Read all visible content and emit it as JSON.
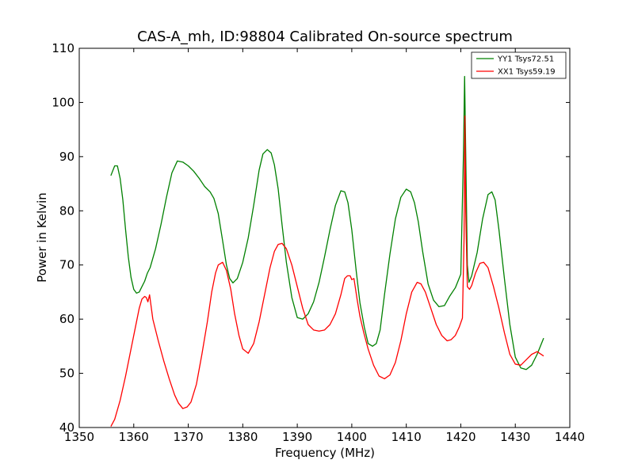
{
  "chart_data": {
    "type": "line",
    "title": "CAS-A_mh, ID:98804 Calibrated On-source spectrum",
    "xlabel": "Frequency (MHz)",
    "ylabel": "Power in Kelvin",
    "xlim": [
      1350,
      1440
    ],
    "ylim": [
      40,
      110
    ],
    "xticks": [
      1350,
      1360,
      1370,
      1380,
      1390,
      1400,
      1410,
      1420,
      1430,
      1440
    ],
    "yticks": [
      40,
      50,
      60,
      70,
      80,
      90,
      100,
      110
    ],
    "grid": false,
    "legend_position": "top-right",
    "series": [
      {
        "name": "YY1 Tsys72.51",
        "color": "#008000",
        "x": [
          1355.8,
          1356.5,
          1357.0,
          1357.5,
          1358.0,
          1358.5,
          1359.0,
          1359.5,
          1360.0,
          1360.5,
          1361.0,
          1361.5,
          1362.0,
          1362.5,
          1363.0,
          1364.0,
          1365.0,
          1366.0,
          1367.0,
          1368.0,
          1369.0,
          1370.0,
          1371.0,
          1372.0,
          1373.0,
          1374.0,
          1374.7,
          1375.5,
          1376.3,
          1377.0,
          1377.6,
          1378.2,
          1379.0,
          1380.0,
          1381.0,
          1382.0,
          1383.0,
          1383.7,
          1384.5,
          1385.2,
          1385.8,
          1386.5,
          1387.2,
          1388.0,
          1389.0,
          1390.0,
          1391.0,
          1392.0,
          1393.0,
          1394.0,
          1395.0,
          1396.0,
          1397.0,
          1398.0,
          1398.7,
          1399.3,
          1400.0,
          1400.8,
          1401.5,
          1402.3,
          1403.0,
          1403.8,
          1404.5,
          1405.2,
          1406.0,
          1407.0,
          1408.0,
          1409.0,
          1410.0,
          1410.8,
          1411.5,
          1412.2,
          1413.0,
          1414.0,
          1415.0,
          1416.0,
          1417.0,
          1418.0,
          1419.0,
          1420.0,
          1420.5,
          1420.7,
          1420.9,
          1421.2,
          1421.5,
          1422.0,
          1423.0,
          1424.0,
          1425.0,
          1425.7,
          1426.3,
          1427.0,
          1428.0,
          1429.0,
          1430.0,
          1431.0,
          1432.0,
          1433.0,
          1434.0,
          1435.2
        ],
        "values": [
          86.5,
          88.3,
          88.3,
          86.0,
          82.0,
          76.5,
          71.5,
          67.7,
          65.5,
          64.8,
          65.0,
          66.0,
          67.0,
          68.5,
          69.5,
          73.0,
          77.5,
          82.5,
          87.0,
          89.2,
          89.0,
          88.3,
          87.3,
          86.0,
          84.5,
          83.5,
          82.3,
          79.5,
          74.5,
          70.0,
          67.5,
          66.7,
          67.5,
          70.5,
          75.0,
          81.0,
          87.5,
          90.5,
          91.3,
          90.7,
          88.5,
          84.0,
          77.5,
          70.5,
          64.0,
          60.3,
          60.0,
          61.0,
          63.2,
          66.8,
          71.5,
          76.5,
          81.0,
          83.7,
          83.5,
          81.5,
          76.5,
          69.0,
          63.0,
          58.5,
          55.5,
          55.0,
          55.5,
          58.0,
          64.5,
          72.0,
          78.5,
          82.5,
          84.0,
          83.5,
          81.5,
          78.0,
          72.5,
          66.5,
          63.5,
          62.3,
          62.5,
          64.3,
          65.8,
          68.3,
          91.0,
          104.8,
          91.0,
          70.0,
          66.8,
          68.0,
          72.3,
          78.5,
          83.0,
          83.5,
          82.0,
          76.5,
          67.5,
          59.0,
          53.0,
          51.0,
          50.7,
          51.5,
          53.5,
          56.5
        ]
      },
      {
        "name": "XX1 Tsys59.19",
        "color": "#ff0000",
        "x": [
          1355.8,
          1356.5,
          1357.5,
          1358.5,
          1359.5,
          1360.5,
          1361.0,
          1361.5,
          1362.0,
          1362.3,
          1362.6,
          1362.9,
          1363.5,
          1364.5,
          1365.5,
          1366.5,
          1367.5,
          1368.2,
          1369.0,
          1369.8,
          1370.5,
          1371.5,
          1372.5,
          1373.5,
          1374.3,
          1375.0,
          1375.5,
          1376.3,
          1377.0,
          1377.8,
          1378.5,
          1379.3,
          1380.0,
          1381.0,
          1382.0,
          1383.0,
          1384.0,
          1385.0,
          1385.8,
          1386.5,
          1387.2,
          1388.0,
          1389.0,
          1390.0,
          1391.0,
          1392.0,
          1393.0,
          1394.0,
          1395.0,
          1396.0,
          1397.0,
          1398.0,
          1398.7,
          1399.2,
          1399.7,
          1400.0,
          1400.4,
          1401.0,
          1401.5,
          1402.2,
          1403.0,
          1404.0,
          1405.0,
          1406.0,
          1407.0,
          1408.0,
          1409.0,
          1410.0,
          1411.0,
          1412.0,
          1412.7,
          1413.5,
          1414.5,
          1415.5,
          1416.5,
          1417.5,
          1418.2,
          1419.0,
          1419.7,
          1420.3,
          1420.6,
          1420.75,
          1420.9,
          1421.2,
          1421.6,
          1422.0,
          1422.7,
          1423.5,
          1424.2,
          1425.0,
          1426.0,
          1427.0,
          1428.0,
          1429.0,
          1430.0,
          1431.0,
          1432.0,
          1433.0,
          1434.0,
          1435.2
        ],
        "values": [
          40.2,
          41.5,
          45.0,
          49.5,
          54.5,
          59.5,
          62.0,
          63.7,
          64.2,
          64.0,
          63.2,
          64.5,
          60.0,
          56.0,
          52.3,
          49.0,
          46.0,
          44.5,
          43.5,
          43.8,
          44.7,
          48.0,
          53.5,
          59.5,
          65.0,
          68.5,
          70.0,
          70.5,
          69.0,
          65.5,
          61.0,
          57.0,
          54.5,
          53.7,
          55.5,
          59.5,
          64.5,
          69.5,
          72.5,
          73.8,
          74.0,
          73.0,
          70.0,
          66.0,
          62.0,
          59.0,
          58.0,
          57.8,
          58.0,
          59.0,
          61.0,
          64.5,
          67.5,
          68.0,
          68.0,
          67.3,
          67.5,
          63.5,
          60.5,
          57.5,
          54.5,
          51.5,
          49.5,
          49.0,
          49.7,
          52.0,
          56.0,
          61.0,
          65.0,
          66.8,
          66.5,
          65.0,
          62.0,
          59.0,
          57.0,
          56.0,
          56.2,
          57.0,
          58.5,
          60.2,
          75.0,
          97.5,
          80.0,
          66.0,
          65.5,
          66.2,
          68.5,
          70.3,
          70.5,
          69.5,
          66.0,
          62.0,
          57.5,
          53.5,
          51.7,
          51.5,
          52.5,
          53.5,
          54.0,
          53.2
        ]
      }
    ]
  }
}
